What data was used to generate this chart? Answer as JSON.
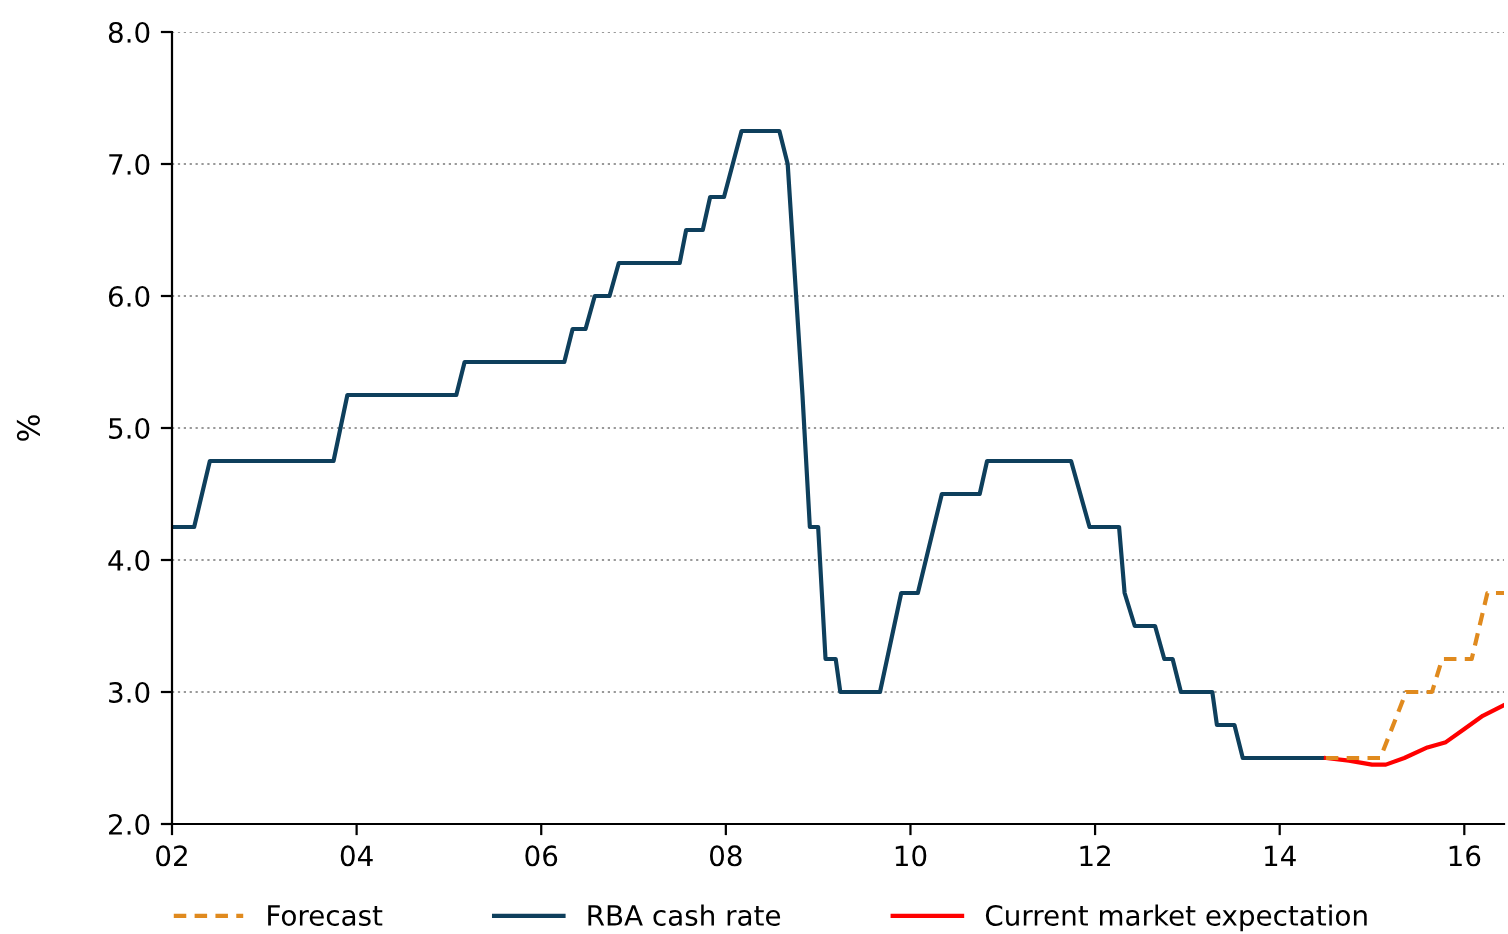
{
  "chart_data": {
    "type": "line",
    "ylabel": "%",
    "xlim": [
      2002,
      2016.43
    ],
    "ylim": [
      2.0,
      8.0
    ],
    "xticks": [
      {
        "value": 2002,
        "label": "02"
      },
      {
        "value": 2004,
        "label": "04"
      },
      {
        "value": 2006,
        "label": "06"
      },
      {
        "value": 2008,
        "label": "08"
      },
      {
        "value": 2010,
        "label": "10"
      },
      {
        "value": 2012,
        "label": "12"
      },
      {
        "value": 2014,
        "label": "14"
      },
      {
        "value": 2016,
        "label": "16"
      }
    ],
    "yticks": [
      {
        "value": 2,
        "label": "2.0"
      },
      {
        "value": 3,
        "label": "3.0"
      },
      {
        "value": 4,
        "label": "4.0"
      },
      {
        "value": 5,
        "label": "5.0"
      },
      {
        "value": 6,
        "label": "6.0"
      },
      {
        "value": 7,
        "label": "7.0"
      },
      {
        "value": 8,
        "label": "8.0"
      }
    ],
    "grid": "y",
    "legend": "bottom",
    "series": [
      {
        "name": "Forecast",
        "color": "#e08a1e",
        "line_style": "dashed",
        "x": [
          2014.5,
          2015.09,
          2015.37,
          2015.65,
          2015.76,
          2016.08,
          2016.25,
          2016.43
        ],
        "values": [
          2.5,
          2.5,
          3.0,
          3.0,
          3.25,
          3.25,
          3.75,
          3.75
        ]
      },
      {
        "name": "RBA cash rate",
        "color": "#0e3f5c",
        "line_style": "solid",
        "x": [
          2002.0,
          2002.24,
          2002.41,
          2003.75,
          2003.9,
          2005.08,
          2005.17,
          2006.25,
          2006.34,
          2006.48,
          2006.58,
          2006.74,
          2006.84,
          2007.5,
          2007.57,
          2007.75,
          2007.83,
          2007.98,
          2008.17,
          2008.58,
          2008.67,
          2008.83,
          2008.91,
          2009.0,
          2009.08,
          2009.19,
          2009.24,
          2009.67,
          2009.9,
          2010.08,
          2010.34,
          2010.75,
          2010.83,
          2011.74,
          2011.94,
          2012.26,
          2012.32,
          2012.43,
          2012.65,
          2012.75,
          2012.84,
          2012.93,
          2013.27,
          2013.32,
          2013.51,
          2013.6,
          2014.5
        ],
        "values": [
          4.25,
          4.25,
          4.75,
          4.75,
          5.25,
          5.25,
          5.5,
          5.5,
          5.75,
          5.75,
          6.0,
          6.0,
          6.25,
          6.25,
          6.5,
          6.5,
          6.75,
          6.75,
          7.25,
          7.25,
          7.0,
          5.25,
          4.25,
          4.25,
          3.25,
          3.25,
          3.0,
          3.0,
          3.75,
          3.75,
          4.5,
          4.5,
          4.75,
          4.75,
          4.25,
          4.25,
          3.75,
          3.5,
          3.5,
          3.25,
          3.25,
          3.0,
          3.0,
          2.75,
          2.75,
          2.5,
          2.5
        ]
      },
      {
        "name": "Current market expectation",
        "color": "#ff0000",
        "line_style": "solid",
        "x": [
          2014.5,
          2014.75,
          2015.0,
          2015.15,
          2015.35,
          2015.6,
          2015.8,
          2016.0,
          2016.2,
          2016.43
        ],
        "values": [
          2.5,
          2.48,
          2.45,
          2.45,
          2.5,
          2.58,
          2.62,
          2.72,
          2.82,
          2.9
        ]
      }
    ]
  }
}
